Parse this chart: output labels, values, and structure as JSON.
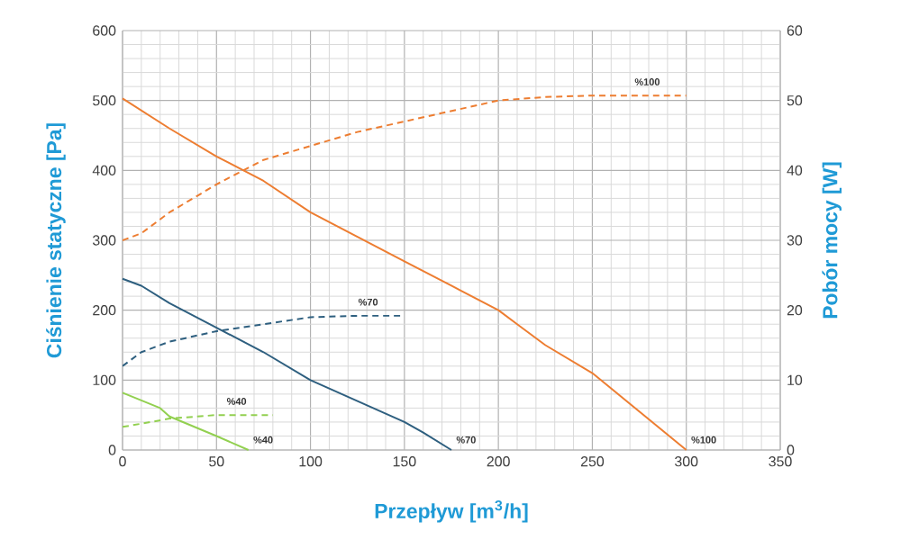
{
  "chart_data": {
    "type": "line",
    "xlabel": "Przepływ [m$^{3}$/h]",
    "ylabel": "Ciśnienie statyczne [Pa]",
    "y2label": "Pobór mocy [W]",
    "xlim": [
      0,
      350
    ],
    "xticks": [
      0,
      50,
      100,
      150,
      200,
      250,
      300,
      350
    ],
    "ylim": [
      0,
      600
    ],
    "yticks": [
      0,
      100,
      200,
      300,
      400,
      500,
      600
    ],
    "y2lim": [
      0,
      60
    ],
    "y2ticks": [
      0,
      10,
      20,
      30,
      40,
      50,
      60
    ],
    "grid": true,
    "marker": "none",
    "series": [
      {
        "color": "#ed7d31",
        "line_style": "solid",
        "x": [
          0,
          25,
          50,
          75,
          100,
          125,
          150,
          175,
          200,
          210,
          225,
          250,
          275,
          300
        ],
        "values": [
          503,
          460,
          420,
          385,
          340,
          305,
          270,
          235,
          200,
          180,
          150,
          110,
          55,
          0
        ]
      },
      {
        "color": "#ed7d31",
        "line_style": "dashed",
        "axis": "y2",
        "x": [
          0,
          10,
          25,
          50,
          75,
          100,
          125,
          150,
          175,
          200,
          225,
          250,
          300
        ],
        "values": [
          30,
          31,
          34,
          38,
          41.5,
          43.5,
          45.5,
          47,
          48.5,
          50,
          50.5,
          50.7,
          50.7
        ]
      },
      {
        "color": "#2e5f7f",
        "line_style": "solid",
        "x": [
          0,
          10,
          25,
          50,
          75,
          100,
          125,
          150,
          160,
          175
        ],
        "values": [
          245,
          235,
          210,
          175,
          140,
          100,
          70,
          40,
          25,
          0
        ]
      },
      {
        "color": "#2e5f7f",
        "line_style": "dashed",
        "axis": "y2",
        "x": [
          0,
          10,
          25,
          50,
          75,
          100,
          125,
          150
        ],
        "values": [
          12,
          14,
          15.5,
          17,
          18,
          19,
          19.2,
          19.2
        ]
      },
      {
        "color": "#92d050",
        "line_style": "solid",
        "x": [
          0,
          20,
          25,
          50,
          67
        ],
        "values": [
          82,
          60,
          48,
          20,
          0
        ]
      },
      {
        "color": "#92d050",
        "line_style": "dashed",
        "axis": "y2",
        "x": [
          0,
          15,
          25,
          50,
          80
        ],
        "values": [
          3.3,
          4,
          4.5,
          5,
          5
        ]
      }
    ],
    "annotations": [
      "%100",
      "%100",
      "%70",
      "%70",
      "%40",
      "%40"
    ]
  }
}
